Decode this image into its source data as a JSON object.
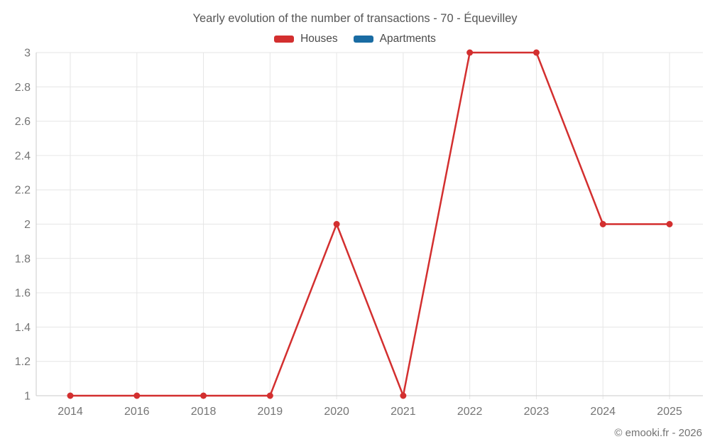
{
  "page": {
    "copyright": "© emooki.fr - 2026"
  },
  "colors": {
    "grid": "#e6e6e6",
    "axis": "#cbcbcb",
    "tick_text": "#757575",
    "title_text": "#565656",
    "houses": "#d32f2f",
    "apartments": "#1a6ca3"
  },
  "chart_data": {
    "type": "line",
    "title": "Yearly evolution of the number of transactions - 70 - Équevilley",
    "categories": [
      "2014",
      "2016",
      "2018",
      "2019",
      "2020",
      "2021",
      "2022",
      "2023",
      "2024",
      "2025"
    ],
    "series": [
      {
        "name": "Houses",
        "color": "#d32f2f",
        "values": [
          1,
          1,
          1,
          1,
          2,
          1,
          3,
          3,
          2,
          2
        ]
      },
      {
        "name": "Apartments",
        "color": "#1a6ca3",
        "values": []
      }
    ],
    "xlabel": "",
    "ylabel": "",
    "ylim": [
      1,
      3
    ],
    "ytick_step": 0.2,
    "ytick_labels": [
      "1",
      "1.2",
      "1.4",
      "1.6",
      "1.8",
      "2",
      "2.2",
      "2.4",
      "2.6",
      "2.8",
      "3"
    ],
    "grid": true,
    "legend_position": "top",
    "marker": "circle"
  }
}
